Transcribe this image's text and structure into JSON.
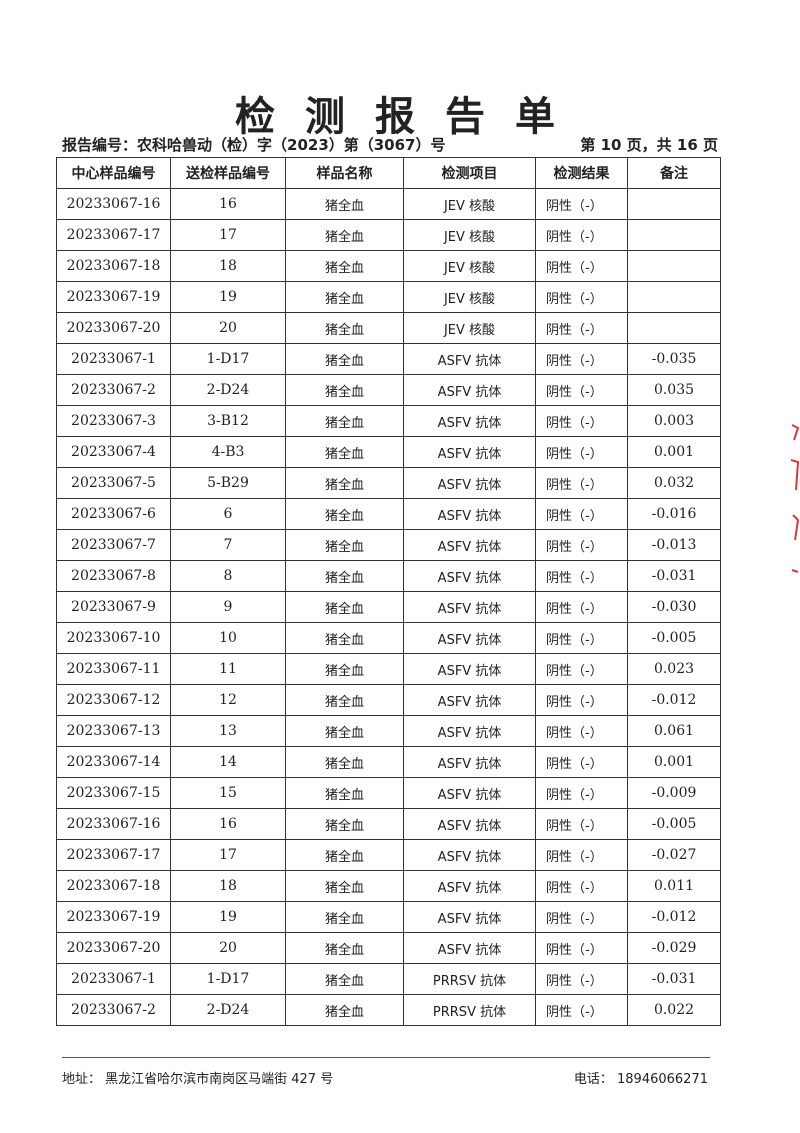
{
  "title": "检测报告单",
  "report_no": "报告编号：农科哈兽动（检）字（2023）第（3067）号",
  "page_no": "第 10 页，共 16 页",
  "table": {
    "headers": [
      "中心样品编号",
      "送检样品编号",
      "样品名称",
      "检测项目",
      "检测结果",
      "备注"
    ],
    "rows": [
      [
        "20233067-16",
        "16",
        "猪全血",
        "JEV 核酸",
        "阴性（-）",
        ""
      ],
      [
        "20233067-17",
        "17",
        "猪全血",
        "JEV 核酸",
        "阴性（-）",
        ""
      ],
      [
        "20233067-18",
        "18",
        "猪全血",
        "JEV 核酸",
        "阴性（-）",
        ""
      ],
      [
        "20233067-19",
        "19",
        "猪全血",
        "JEV 核酸",
        "阴性（-）",
        ""
      ],
      [
        "20233067-20",
        "20",
        "猪全血",
        "JEV 核酸",
        "阴性（-）",
        ""
      ],
      [
        "20233067-1",
        "1-D17",
        "猪全血",
        "ASFV 抗体",
        "阴性（-）",
        "-0.035"
      ],
      [
        "20233067-2",
        "2-D24",
        "猪全血",
        "ASFV 抗体",
        "阴性（-）",
        "0.035"
      ],
      [
        "20233067-3",
        "3-B12",
        "猪全血",
        "ASFV 抗体",
        "阴性（-）",
        "0.003"
      ],
      [
        "20233067-4",
        "4-B3",
        "猪全血",
        "ASFV 抗体",
        "阴性（-）",
        "0.001"
      ],
      [
        "20233067-5",
        "5-B29",
        "猪全血",
        "ASFV 抗体",
        "阴性（-）",
        "0.032"
      ],
      [
        "20233067-6",
        "6",
        "猪全血",
        "ASFV 抗体",
        "阴性（-）",
        "-0.016"
      ],
      [
        "20233067-7",
        "7",
        "猪全血",
        "ASFV 抗体",
        "阴性（-）",
        "-0.013"
      ],
      [
        "20233067-8",
        "8",
        "猪全血",
        "ASFV 抗体",
        "阴性（-）",
        "-0.031"
      ],
      [
        "20233067-9",
        "9",
        "猪全血",
        "ASFV 抗体",
        "阴性（-）",
        "-0.030"
      ],
      [
        "20233067-10",
        "10",
        "猪全血",
        "ASFV 抗体",
        "阴性（-）",
        "-0.005"
      ],
      [
        "20233067-11",
        "11",
        "猪全血",
        "ASFV 抗体",
        "阴性（-）",
        "0.023"
      ],
      [
        "20233067-12",
        "12",
        "猪全血",
        "ASFV 抗体",
        "阴性（-）",
        "-0.012"
      ],
      [
        "20233067-13",
        "13",
        "猪全血",
        "ASFV 抗体",
        "阴性（-）",
        "0.061"
      ],
      [
        "20233067-14",
        "14",
        "猪全血",
        "ASFV 抗体",
        "阴性（-）",
        "0.001"
      ],
      [
        "20233067-15",
        "15",
        "猪全血",
        "ASFV 抗体",
        "阴性（-）",
        "-0.009"
      ],
      [
        "20233067-16",
        "16",
        "猪全血",
        "ASFV 抗体",
        "阴性（-）",
        "-0.005"
      ],
      [
        "20233067-17",
        "17",
        "猪全血",
        "ASFV 抗体",
        "阴性（-）",
        "-0.027"
      ],
      [
        "20233067-18",
        "18",
        "猪全血",
        "ASFV 抗体",
        "阴性（-）",
        "0.011"
      ],
      [
        "20233067-19",
        "19",
        "猪全血",
        "ASFV 抗体",
        "阴性（-）",
        "-0.012"
      ],
      [
        "20233067-20",
        "20",
        "猪全血",
        "ASFV 抗体",
        "阴性（-）",
        "-0.029"
      ],
      [
        "20233067-1",
        "1-D17",
        "猪全血",
        "PRRSV 抗体",
        "阴性（-）",
        "-0.031"
      ],
      [
        "20233067-2",
        "2-D24",
        "猪全血",
        "PRRSV 抗体",
        "阴性（-）",
        "0.022"
      ]
    ]
  },
  "footer": {
    "address": "地址：  黑龙江省哈尔滨市南岗区马端街 427 号",
    "phone": "电话：  18946066271"
  },
  "colors": {
    "seal": "#d63a3a",
    "text": "#222222"
  }
}
